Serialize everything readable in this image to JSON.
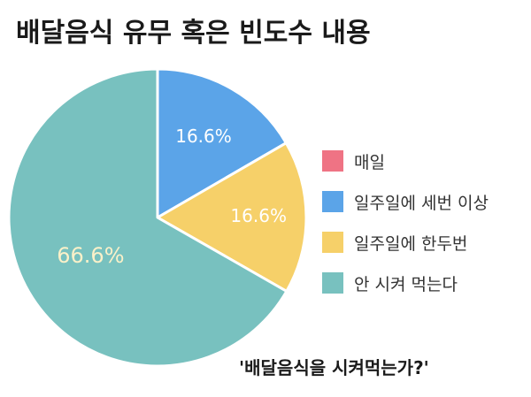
{
  "title": "배달음식 유무 혹은 빈도수 내용",
  "colors": {
    "daily": "#ef7384",
    "weekly_three_plus": "#5ba4e8",
    "weekly_one_two": "#f6d069",
    "never": "#78c1bf"
  },
  "chart_data": {
    "type": "pie",
    "title": "배달음식 유무 혹은 빈도수 내용",
    "legend_position": "right",
    "slices": [
      {
        "label": "매일",
        "value": 0,
        "value_label": "",
        "color": "#ef7384"
      },
      {
        "label": "일주일에 세번 이상",
        "value": 16.6,
        "value_label": "16.6%",
        "color": "#5ba4e8"
      },
      {
        "label": "일주일에 한두번",
        "value": 16.6,
        "value_label": "16.6%",
        "color": "#f6d069"
      },
      {
        "label": "안 시켜 먹는다",
        "value": 66.6,
        "value_label": "66.6%",
        "color": "#78c1bf"
      }
    ],
    "annotations": [
      "'배달음식을 시켜먹는가?'"
    ]
  }
}
